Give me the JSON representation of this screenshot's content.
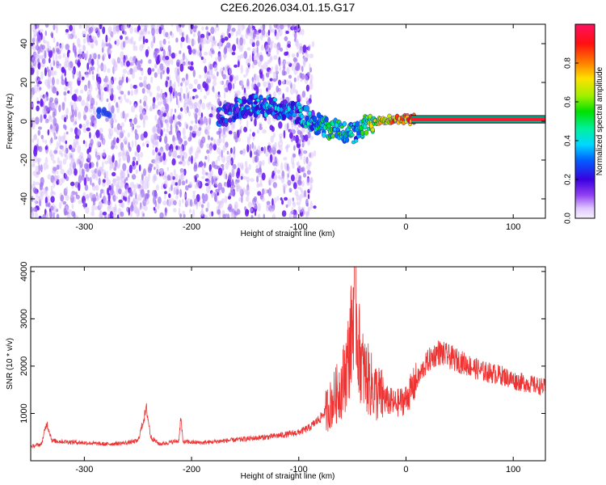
{
  "title": "C2E6.2026.034.01.15.G17",
  "chart_data": [
    {
      "type": "heatmap",
      "xlabel": "Height of straight line (km)",
      "ylabel": "Frequency (Hz)",
      "xlim": [
        -350,
        130
      ],
      "ylim": [
        -50,
        50
      ],
      "xticks": [
        -300,
        -200,
        -100,
        0,
        100
      ],
      "yticks": [
        -40,
        -20,
        0,
        20,
        40
      ],
      "noise_region_x": [
        -350,
        -88
      ],
      "signal_trace": {
        "x": [
          -175,
          -160,
          -145,
          -130,
          -115,
          -100,
          -90,
          -80,
          -70,
          -60,
          -50,
          -45,
          -40,
          -30,
          -20,
          -10,
          0,
          5,
          130
        ],
        "y": [
          1,
          6,
          8,
          8,
          6,
          4,
          1,
          -2,
          -4,
          -5,
          -6,
          -6,
          -3,
          0,
          1,
          1,
          1,
          1,
          1
        ],
        "amplitude": [
          0.2,
          0.25,
          0.3,
          0.3,
          0.25,
          0.3,
          0.35,
          0.4,
          0.45,
          0.45,
          0.35,
          0.3,
          0.5,
          0.6,
          0.7,
          0.75,
          0.8,
          0.8,
          0.85
        ]
      },
      "colorbar": {
        "label": "Normalized spectral amplitude",
        "range": [
          0,
          1
        ],
        "ticks": [
          "0.0",
          "0.2",
          "0.4",
          "0.6",
          "0.8"
        ]
      },
      "grid": false
    },
    {
      "type": "line",
      "xlabel": "Height of straight line (km)",
      "ylabel": "SNR (10 * v/v)",
      "xlim": [
        -350,
        130
      ],
      "ylim": [
        0,
        4100
      ],
      "xticks": [
        -300,
        -200,
        -100,
        0,
        100
      ],
      "yticks": [
        1000,
        2000,
        3000,
        4000
      ],
      "color": "#ee3333",
      "series": [
        {
          "x": [
            -350,
            -340,
            -335,
            -330,
            -300,
            -280,
            -260,
            -250,
            -242,
            -238,
            -230,
            -212,
            -210,
            -208,
            -190,
            -170,
            -150,
            -130,
            -110,
            -100,
            -90,
            -80,
            -70,
            -60,
            -55,
            -50,
            -48,
            -45,
            -40,
            -30,
            -20,
            -10,
            0,
            10,
            20,
            30,
            40,
            50,
            60,
            70,
            80,
            90,
            100,
            110,
            120,
            130
          ],
          "y": [
            300,
            350,
            800,
            420,
            380,
            350,
            380,
            420,
            1100,
            500,
            350,
            420,
            900,
            400,
            380,
            420,
            460,
            500,
            560,
            600,
            700,
            900,
            1200,
            1600,
            2000,
            2800,
            4000,
            2500,
            1900,
            1500,
            1300,
            1200,
            1300,
            1700,
            2100,
            2300,
            2200,
            2100,
            2000,
            1900,
            1850,
            1800,
            1700,
            1650,
            1600,
            1550
          ]
        }
      ],
      "grid": false
    }
  ]
}
